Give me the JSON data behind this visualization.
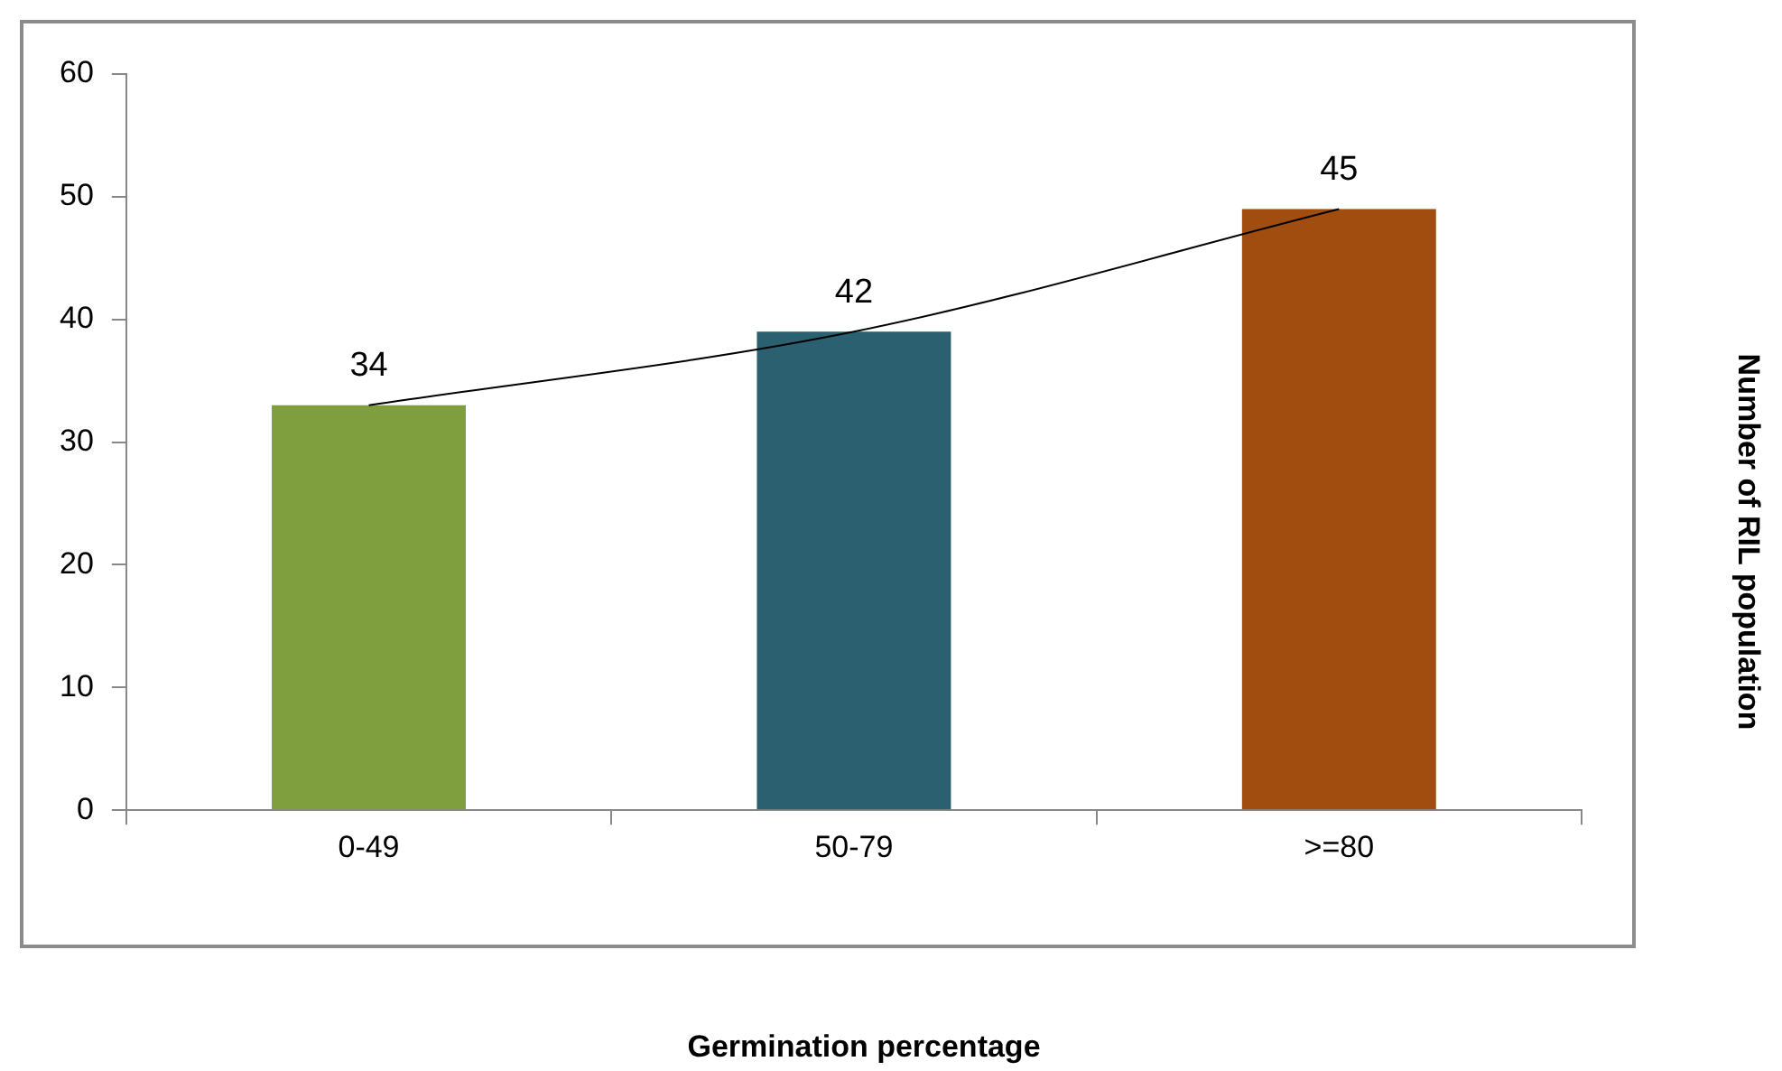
{
  "chart_data": {
    "type": "bar",
    "ylabel": "Number of RIL population",
    "categories": [
      "0-49",
      "50-79",
      ">=80"
    ],
    "series": [
      {
        "colors": [
          "#7f9f3f",
          "#2a6070",
          "#a14d10"
        ],
        "values": [
          33,
          39,
          49
        ]
      },
      {
        "type": "line",
        "color": "#000000",
        "values": [
          33,
          39,
          49
        ]
      }
    ],
    "annotations": [
      {
        "text": "34",
        "x": "0-49",
        "y": 33
      },
      {
        "text": "42",
        "x": "50-79",
        "y": 39
      },
      {
        "text": "45",
        "x": ">=80",
        "y": 49
      },
      "Germination percentage"
    ],
    "ylim": [
      0,
      60
    ],
    "yticks": [
      0,
      10,
      20,
      30,
      40,
      50,
      60
    ],
    "grid": false,
    "legend": false,
    "marker": "none"
  }
}
